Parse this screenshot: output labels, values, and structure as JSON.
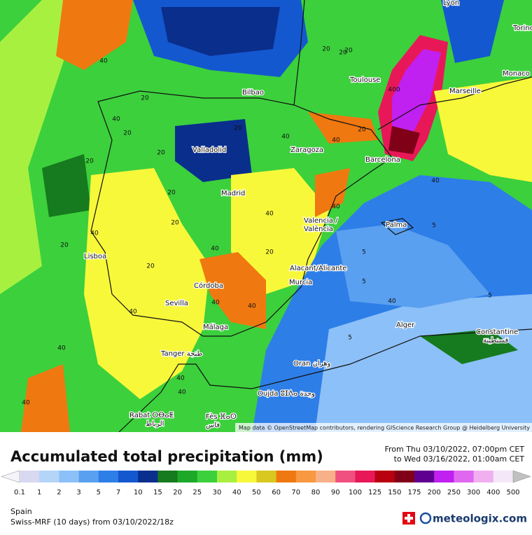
{
  "map": {
    "cities": [
      "Lyon",
      "Torino",
      "Monaco",
      "Toulouse",
      "Marseille",
      "Bilbao",
      "Valladolid",
      "Zaragoza",
      "Barcelona",
      "Madrid",
      "Valencia /",
      "València",
      "Palma",
      "Lisboa",
      "Alacant/Alicante",
      "Murcia",
      "Córdoba",
      "Sevilla",
      "Málaga",
      "Alger",
      "Constantine",
      "قسنطينة",
      "Tanger طنجة",
      "Oran وهران",
      "Oujda ⵓⵊⴷⴰ وجدة",
      "Rabat ⵔⴱⴰⵟ",
      "الرباط",
      "Fès ⴼⴰⵙ",
      "فاس"
    ],
    "contour_labels": [
      40,
      20,
      20,
      40,
      20,
      20,
      20,
      20,
      20,
      40,
      40,
      20,
      400,
      20,
      40,
      20,
      20,
      40,
      40,
      20,
      40,
      40,
      40,
      40,
      20,
      40,
      20,
      40,
      40,
      5,
      5,
      5,
      5,
      5,
      40,
      40,
      40
    ],
    "attribution": "Map data © OpenStreetMap contributors, rendering GIScience Research Group @ Heidelberg University"
  },
  "legend": {
    "title": "Accumulated total precipitation (mm)",
    "period_from": "From Thu 03/10/2022, 07:00pm CET",
    "period_to": "to Wed 03/16/2022, 01:00am CET",
    "values": [
      0.1,
      1,
      2,
      3,
      5,
      7,
      10,
      15,
      20,
      25,
      30,
      40,
      50,
      60,
      70,
      80,
      90,
      100,
      125,
      150,
      175,
      200,
      250,
      300,
      400,
      500
    ],
    "colors": [
      "#f4f4fa",
      "#d8d8f0",
      "#b4d4f8",
      "#8cc0f8",
      "#5aa0f0",
      "#2e7ee8",
      "#1458d0",
      "#0a2e8c",
      "#167a1e",
      "#1ea82a",
      "#3cd03c",
      "#a8f040",
      "#f8f83a",
      "#d8c820",
      "#f07810",
      "#f89840",
      "#f8b088",
      "#f05080",
      "#e81858",
      "#b80010",
      "#800018",
      "#600090",
      "#c020f0",
      "#e068f0",
      "#f0b0f0",
      "#f4e8f8",
      "#c0c0c0"
    ]
  },
  "footer": {
    "region": "Spain",
    "model": "Swiss-MRF (10 days) from 03/10/2022/18z",
    "brand": "meteologix.com"
  }
}
